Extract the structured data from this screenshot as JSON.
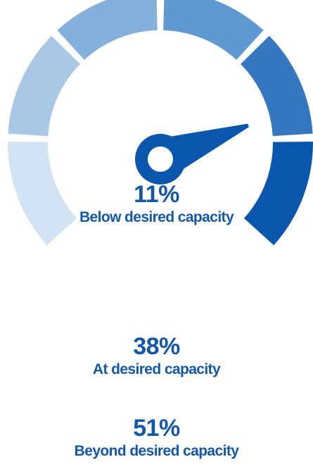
{
  "chart_data": {
    "type": "gauge",
    "segments": [
      {
        "color": "#d2e3f3"
      },
      {
        "color": "#a9c8e6"
      },
      {
        "color": "#86b0dc"
      },
      {
        "color": "#5f99d0"
      },
      {
        "color": "#3578c0"
      },
      {
        "color": "#0b56ad"
      }
    ],
    "needle_color": "#0b56ad",
    "text_color": "#1357a6",
    "stats": [
      {
        "value": "11%",
        "label": "Below desired capacity"
      },
      {
        "value": "38%",
        "label": "At desired capacity"
      },
      {
        "value": "51%",
        "label": "Beyond desired capacity"
      }
    ]
  }
}
